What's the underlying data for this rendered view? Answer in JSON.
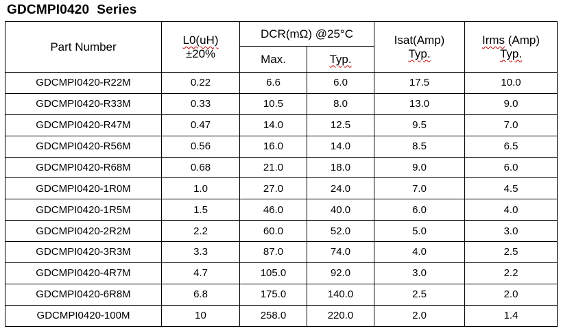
{
  "title": "GDCMPI0420  Series",
  "headers": {
    "part_number": "Part Number",
    "inductance_line1": "L0(uH)",
    "inductance_line2": "±20%",
    "dcr": "DCR(mΩ) @25°C",
    "dcr_max": "Max.",
    "dcr_typ": "Typ.",
    "isat_line1": "Isat(Amp)",
    "isat_line2": "Typ.",
    "irms_line1": "Irms (Amp)",
    "irms_line2": "Typ."
  },
  "rows": [
    {
      "part": "GDCMPI0420-R22M",
      "l0": "0.22",
      "dcr_max": "6.6",
      "dcr_typ": "6.0",
      "isat": "17.5",
      "irms": "10.0"
    },
    {
      "part": "GDCMPI0420-R33M",
      "l0": "0.33",
      "dcr_max": "10.5",
      "dcr_typ": "8.0",
      "isat": "13.0",
      "irms": "9.0"
    },
    {
      "part": "GDCMPI0420-R47M",
      "l0": "0.47",
      "dcr_max": "14.0",
      "dcr_typ": "12.5",
      "isat": "9.5",
      "irms": "7.0"
    },
    {
      "part": "GDCMPI0420-R56M",
      "l0": "0.56",
      "dcr_max": "16.0",
      "dcr_typ": "14.0",
      "isat": "8.5",
      "irms": "6.5"
    },
    {
      "part": "GDCMPI0420-R68M",
      "l0": "0.68",
      "dcr_max": "21.0",
      "dcr_typ": "18.0",
      "isat": "9.0",
      "irms": "6.0"
    },
    {
      "part": "GDCMPI0420-1R0M",
      "l0": "1.0",
      "dcr_max": "27.0",
      "dcr_typ": "24.0",
      "isat": "7.0",
      "irms": "4.5"
    },
    {
      "part": "GDCMPI0420-1R5M",
      "l0": "1.5",
      "dcr_max": "46.0",
      "dcr_typ": "40.0",
      "isat": "6.0",
      "irms": "4.0"
    },
    {
      "part": "GDCMPI0420-2R2M",
      "l0": "2.2",
      "dcr_max": "60.0",
      "dcr_typ": "52.0",
      "isat": "5.0",
      "irms": "3.0"
    },
    {
      "part": "GDCMPI0420-3R3M",
      "l0": "3.3",
      "dcr_max": "87.0",
      "dcr_typ": "74.0",
      "isat": "4.0",
      "irms": "2.5"
    },
    {
      "part": "GDCMPI0420-4R7M",
      "l0": "4.7",
      "dcr_max": "105.0",
      "dcr_typ": "92.0",
      "isat": "3.0",
      "irms": "2.2"
    },
    {
      "part": "GDCMPI0420-6R8M",
      "l0": "6.8",
      "dcr_max": "175.0",
      "dcr_typ": "140.0",
      "isat": "2.5",
      "irms": "2.0"
    },
    {
      "part": "GDCMPI0420-100M",
      "l0": "10",
      "dcr_max": "258.0",
      "dcr_typ": "220.0",
      "isat": "2.0",
      "irms": "1.4"
    }
  ]
}
